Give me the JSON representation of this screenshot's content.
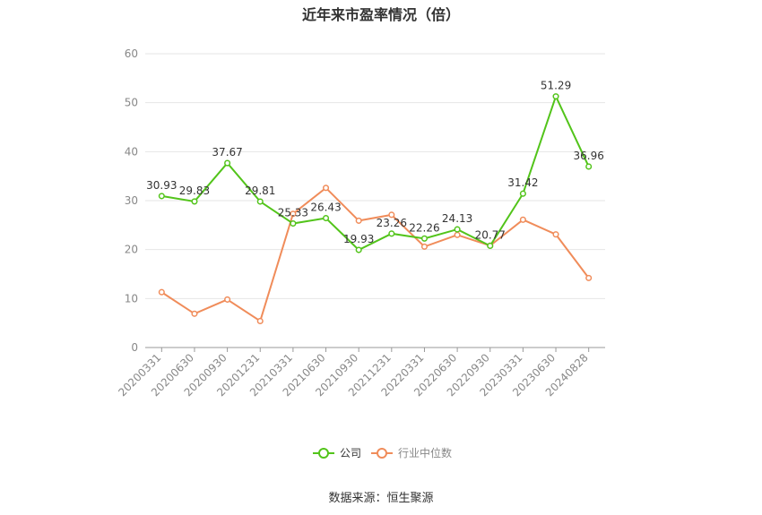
{
  "title": "近年来市盈率情况（倍）",
  "source": "数据来源：恒生聚源",
  "chart_data": {
    "type": "line",
    "categories": [
      "20200331",
      "20200630",
      "20200930",
      "20201231",
      "20210331",
      "20210630",
      "20210930",
      "20211231",
      "20220331",
      "20220630",
      "20220930",
      "20230331",
      "20230630",
      "20240828"
    ],
    "ylim": [
      0,
      60
    ],
    "yticks": [
      0,
      10,
      20,
      30,
      40,
      50,
      60
    ],
    "grid": true,
    "legend_position": "bottom",
    "series": [
      {
        "name": "公司",
        "color": "#52c41a",
        "show_labels": true,
        "values": [
          30.93,
          29.83,
          37.67,
          29.81,
          25.33,
          26.43,
          19.93,
          23.26,
          22.26,
          24.13,
          20.77,
          31.42,
          51.29,
          36.96
        ],
        "labels": [
          "30.93",
          "29.83",
          "37.67",
          "29.81",
          "25.33",
          "26.43",
          "19.93",
          "23.26",
          "22.26",
          "24.13",
          "20.77",
          "31.42",
          "51.29",
          "36.96"
        ]
      },
      {
        "name": "行业中位数",
        "color": "#f08c5a",
        "show_labels": false,
        "values": [
          11.3,
          6.9,
          9.8,
          5.4,
          27.3,
          32.6,
          25.9,
          27.1,
          20.6,
          23.0,
          20.8,
          26.1,
          23.1,
          14.2
        ]
      }
    ]
  }
}
